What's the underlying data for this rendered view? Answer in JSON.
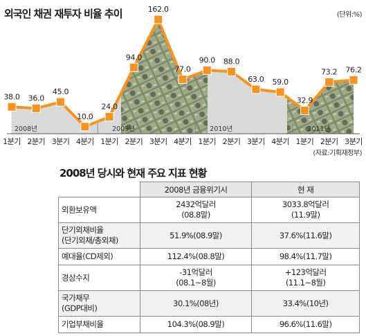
{
  "title": "외국인 채권 재투자 비율 추이",
  "unit": "(단위:%)",
  "source": "(자료:기획재정부)",
  "colors": {
    "line": "#F7931E",
    "marker": "#F7931E",
    "fill": "#d9d9d9",
    "grid": "#9a9a9a"
  },
  "chart_data": {
    "type": "area",
    "title": "외국인 채권 재투자 비율 추이",
    "unit": "%",
    "x": [
      "1분기",
      "2분기",
      "3분기",
      "4분기",
      "1분기",
      "2분기",
      "3분기",
      "4분기",
      "1분기",
      "2분기",
      "3분기",
      "4분기",
      "1분기",
      "2분기",
      "3분기"
    ],
    "values": [
      38.0,
      36.0,
      45.0,
      10.0,
      24.0,
      94.0,
      162.0,
      77.0,
      90.0,
      88.0,
      63.0,
      59.0,
      32.9,
      73.2,
      76.2
    ],
    "value_labels": [
      "38.0",
      "36.0",
      "45.0",
      "10.0",
      "24.0",
      "94.0",
      "162.0",
      "77.0",
      "90.0",
      "88.0",
      "63.0",
      "59.0",
      "32.9",
      "73.2",
      "76.2"
    ],
    "year_labels": [
      {
        "text": "2008년",
        "start_index": 0
      },
      {
        "text": "2009년",
        "start_index": 4
      },
      {
        "text": "2010년",
        "start_index": 8
      },
      {
        "text": "2011년",
        "start_index": 12
      }
    ],
    "ylim": [
      0,
      170
    ]
  },
  "table": {
    "title": "2008년 당시와 현재 주요 지표 현황",
    "headers": [
      "",
      "2008년 금융위기시",
      "현    재"
    ],
    "rows": [
      {
        "label": [
          "외환보유액"
        ],
        "crisis": [
          "2432억달러",
          "(08.8말)"
        ],
        "now": [
          "3033.8억달러",
          "(11.9말)"
        ]
      },
      {
        "label": [
          "단기외채비율",
          "(단기외채/총외채)"
        ],
        "crisis": [
          "51.9%(08.9말)"
        ],
        "now": [
          "37.6%(11.6말)"
        ]
      },
      {
        "label": [
          "예대율(CD제외)"
        ],
        "crisis": [
          "112.4%(08.8말)"
        ],
        "now": [
          "98.4%(11.7말)"
        ]
      },
      {
        "label": [
          "경상수지"
        ],
        "crisis": [
          "-31억달러",
          "(08.1~8월)"
        ],
        "now": [
          "+123억달러",
          "(11.1~8월)"
        ]
      },
      {
        "label": [
          "국가채무",
          "(GDP대비)"
        ],
        "crisis": [
          "30.1%(08년)"
        ],
        "now": [
          "33.4%(10년)"
        ]
      },
      {
        "label": [
          "기업부채비율"
        ],
        "crisis": [
          "104.3%(08.9말)"
        ],
        "now": [
          "96.6%(11.6말)"
        ]
      }
    ]
  }
}
